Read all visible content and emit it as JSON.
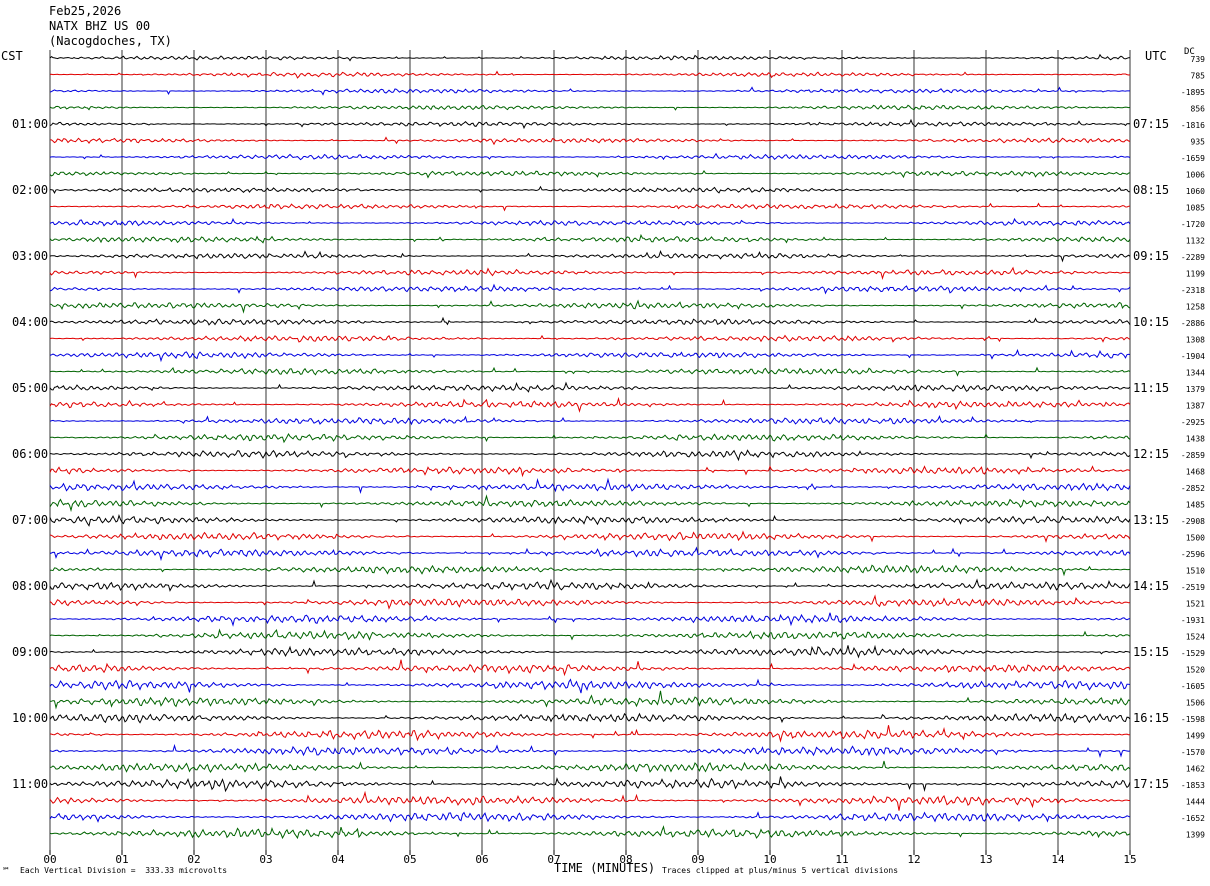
{
  "header": {
    "date": "Feb25,2026",
    "station": "NATX BHZ US 00",
    "location": "(Nacogdoches, TX)"
  },
  "left_timezone": "CST",
  "right_timezone": "UTC",
  "dc_label": "DC",
  "footer": {
    "scale_note": "Each Vertical Division =  333.33 microvolts",
    "axis_title": "TIME (MINUTES)",
    "clip_note": "Traces clipped at plus/minus 5 vertical divisions",
    "corner_mark": "℠"
  },
  "colors": {
    "trace_cycle": [
      "#000000",
      "#e00000",
      "#0000e0",
      "#006400"
    ],
    "grid": "#000000",
    "background": "#ffffff"
  },
  "chart_data": {
    "type": "line",
    "title": "",
    "xlabel": "TIME (MINUTES)",
    "ylabel": "",
    "x_ticks": [
      "00",
      "01",
      "02",
      "03",
      "04",
      "05",
      "06",
      "07",
      "08",
      "09",
      "10",
      "11",
      "12",
      "13",
      "14",
      "15"
    ],
    "xlim": [
      0,
      15
    ],
    "grid": true,
    "traces_per_hour": 4,
    "trace_count": 48,
    "left_hour_labels": [
      "01:00",
      "02:00",
      "03:00",
      "04:00",
      "05:00",
      "06:00",
      "07:00",
      "08:00",
      "09:00",
      "10:00",
      "11:00"
    ],
    "right_hour_labels": [
      "07:15",
      "08:15",
      "09:15",
      "10:15",
      "11:15",
      "12:15",
      "13:15",
      "14:15",
      "15:15",
      "16:15",
      "17:15"
    ],
    "dc_offsets": [
      "739",
      "785",
      "-1895",
      "856",
      "-1816",
      "935",
      "-1659",
      "1006",
      "1060",
      "1085",
      "-1720",
      "1132",
      "-2289",
      "1199",
      "-2318",
      "1258",
      "-2886",
      "1308",
      "-1904",
      "1344",
      "1379",
      "1387",
      "-2925",
      "1438",
      "-2859",
      "1468",
      "-2852",
      "1485",
      "-2908",
      "1500",
      "-2596",
      "1510",
      "-2519",
      "1521",
      "-1931",
      "1524",
      "-1529",
      "1520",
      "-1605",
      "1506",
      "-1598",
      "1499",
      "-1570",
      "1462",
      "-1853",
      "1444",
      "-1652",
      "1399"
    ]
  }
}
